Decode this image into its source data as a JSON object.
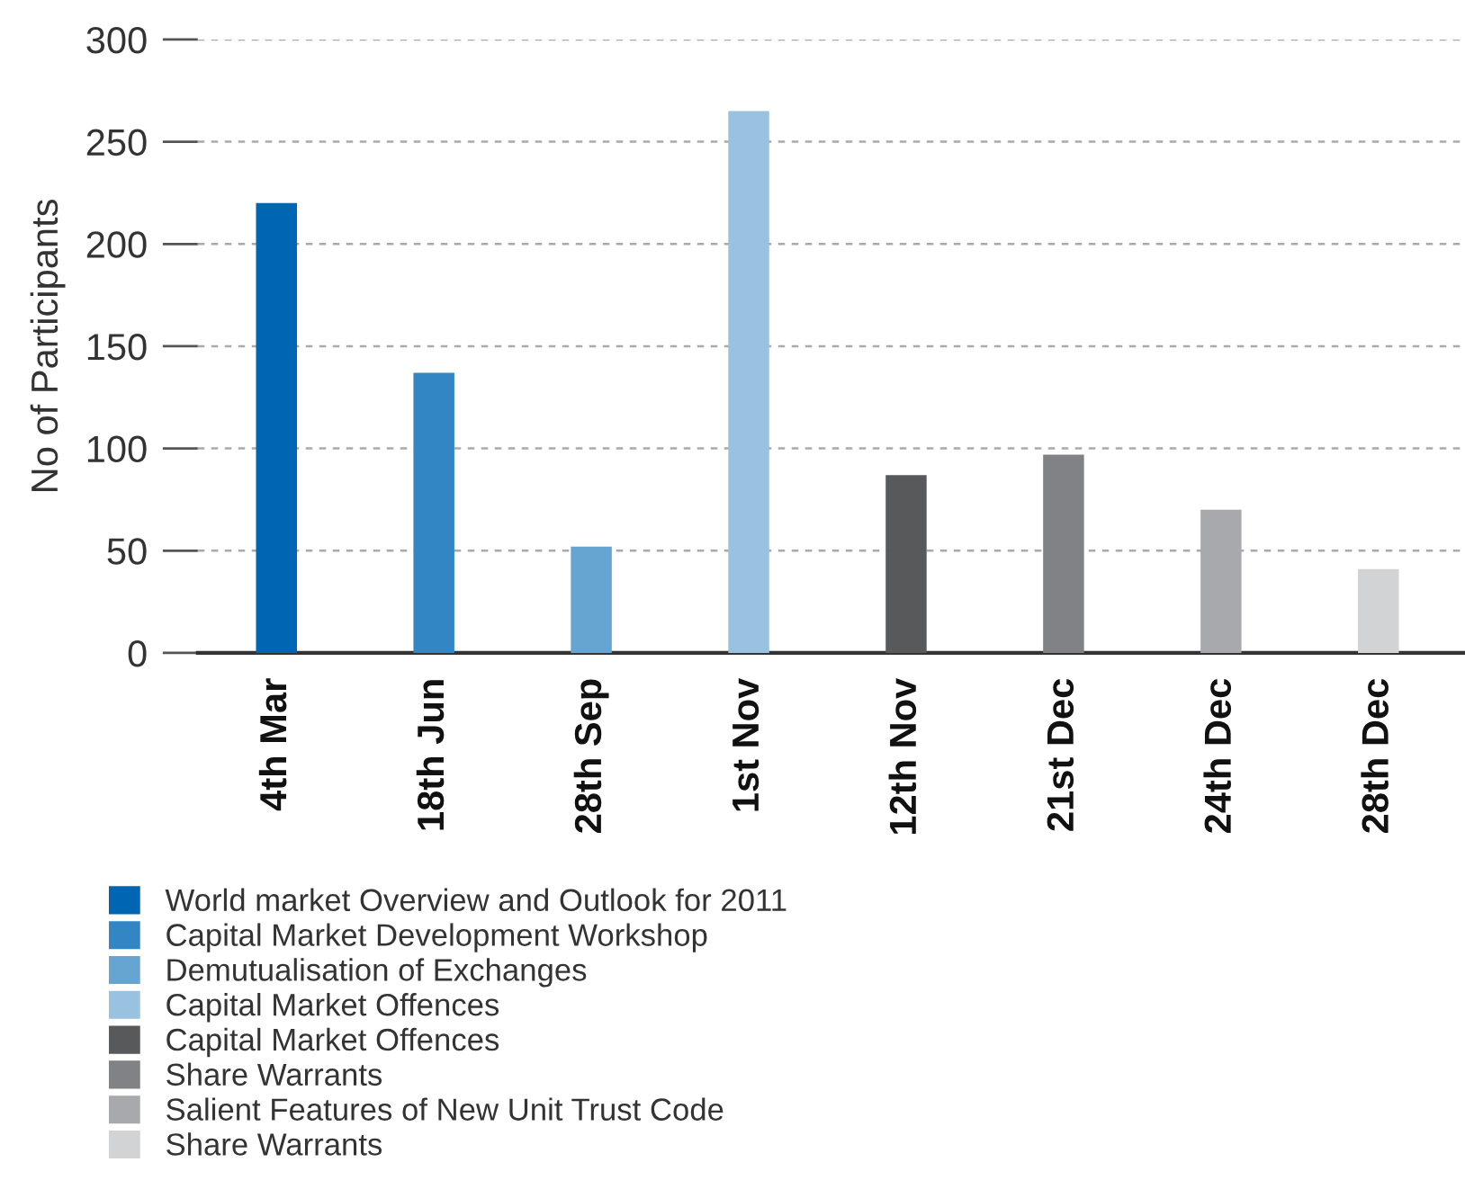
{
  "chart_data": {
    "type": "bar",
    "ylabel": "No of Participants",
    "categories": [
      "4th Mar",
      "18th Jun",
      "28th Sep",
      "1st Nov",
      "12th Nov",
      "21st Dec",
      "24th Dec",
      "28th Dec"
    ],
    "series": [
      {
        "name": "World market Overview and Outlook for 2011",
        "color": "#0066b3",
        "values": [
          220,
          null,
          null,
          null,
          null,
          null,
          null,
          null
        ]
      },
      {
        "name": "Capital Market Development Workshop",
        "color": "#3386c4",
        "values": [
          null,
          137,
          null,
          null,
          null,
          null,
          null,
          null
        ]
      },
      {
        "name": "Demutualisation of Exchanges",
        "color": "#66a5d2",
        "values": [
          null,
          null,
          52,
          null,
          null,
          null,
          null,
          null
        ]
      },
      {
        "name": "Capital Market Offences",
        "color": "#99c2e1",
        "values": [
          null,
          null,
          null,
          265,
          null,
          null,
          null,
          null
        ]
      },
      {
        "name": "Capital Market Offences",
        "color": "#58595b",
        "values": [
          null,
          null,
          null,
          null,
          87,
          null,
          null,
          null
        ]
      },
      {
        "name": "Share Warrants",
        "color": "#808285",
        "values": [
          null,
          null,
          null,
          null,
          null,
          97,
          null,
          null
        ]
      },
      {
        "name": "Salient Features of New Unit Trust Code",
        "color": "#a7a9ac",
        "values": [
          null,
          null,
          null,
          null,
          null,
          null,
          70,
          null
        ]
      },
      {
        "name": "Share Warrants",
        "color": "#d1d3d4",
        "values": [
          null,
          null,
          null,
          null,
          null,
          null,
          null,
          41
        ]
      }
    ],
    "ylim": [
      0,
      300
    ],
    "yticks": [
      0,
      50,
      100,
      150,
      200,
      250,
      300
    ],
    "grid": "y",
    "legend": "bottom left"
  }
}
